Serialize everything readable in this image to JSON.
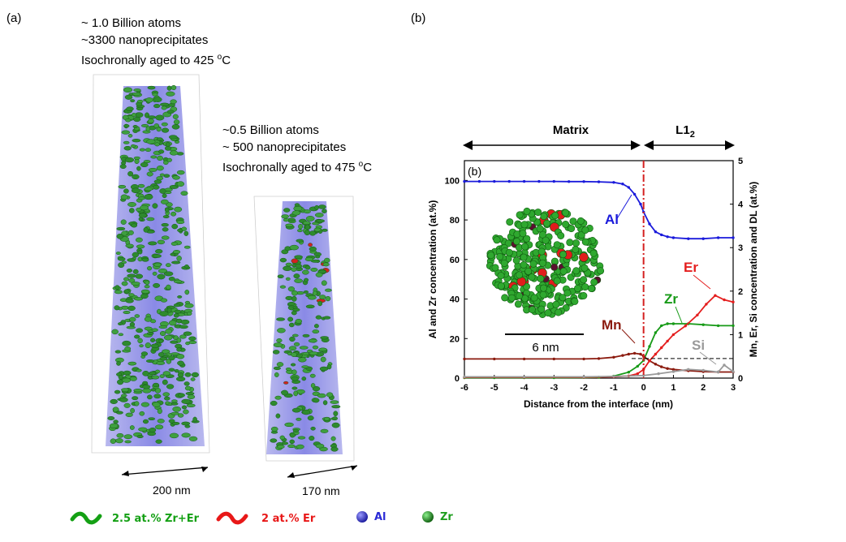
{
  "panel_a": {
    "label": "(a)",
    "tall": {
      "lines": [
        "~ 1.0 Billion atoms",
        "~3300 nanoprecipitates"
      ],
      "aged_prefix": "Isochronally aged to 425 ",
      "aged_sup": "o",
      "aged_suffix": "C",
      "scale": "200 nm"
    },
    "short": {
      "lines": [
        "~0.5 Billion atoms",
        "~ 500 nanoprecipitates"
      ],
      "aged_prefix": "Isochronally aged to 475 ",
      "aged_sup": "o",
      "aged_suffix": "C",
      "scale": "170 nm"
    },
    "legend": [
      {
        "label": "2.5 at.% Zr+Er",
        "kind": "wave",
        "color": "#14a014"
      },
      {
        "label": "2 at.% Er",
        "kind": "wave",
        "color": "#e81818"
      },
      {
        "label": "Al",
        "kind": "sphere",
        "color": "#2a2ad6"
      },
      {
        "label": "Zr",
        "kind": "sphere",
        "color": "#1e9e1e"
      }
    ]
  },
  "panel_b": {
    "label": "(b)",
    "inner_label": "(b)",
    "region_matrix": "Matrix",
    "region_l12": "L1",
    "region_l12_sub": "2",
    "inset_scale": "6 nm"
  },
  "chart_data": {
    "type": "line",
    "xlabel": "Distance from the interface (nm)",
    "ylabel": "Al and Zr concentration (at.%)",
    "y2label": "Mn, Er, Si concentration and DL (at.%)",
    "xlim": [
      -6,
      3
    ],
    "ylim": [
      0,
      110
    ],
    "y2lim": [
      0,
      5
    ],
    "xticks": [
      "-6",
      "-5",
      "-4",
      "-3",
      "-2",
      "-1",
      "0",
      "1",
      "2",
      "3"
    ],
    "yticks": [
      "0",
      "20",
      "40",
      "60",
      "80",
      "100"
    ],
    "y2ticks": [
      "0",
      "1",
      "2",
      "3",
      "4",
      "5"
    ],
    "interface_x": 0,
    "detection_limit": 0.45,
    "series": [
      {
        "name": "Al",
        "axis": "left",
        "color": "#1a1adb",
        "x": [
          -6,
          -5.5,
          -5,
          -4.5,
          -4,
          -3.5,
          -3,
          -2.5,
          -2,
          -1.5,
          -1,
          -0.7,
          -0.5,
          -0.3,
          -0.1,
          0,
          0.2,
          0.4,
          0.6,
          0.8,
          1,
          1.5,
          2,
          2.5,
          3
        ],
        "y": [
          99.5,
          99.5,
          99.5,
          99.5,
          99.5,
          99.5,
          99.5,
          99.4,
          99.4,
          99.3,
          99,
          98.2,
          96.5,
          93,
          88,
          84,
          78,
          74,
          72.5,
          71.5,
          71,
          70.5,
          70.5,
          71,
          71
        ]
      },
      {
        "name": "Zr",
        "axis": "left",
        "color": "#179a17",
        "x": [
          -6,
          -5,
          -4,
          -3,
          -2,
          -1.5,
          -1,
          -0.5,
          -0.2,
          0,
          0.2,
          0.4,
          0.6,
          0.8,
          1,
          1.5,
          2,
          2.5,
          3
        ],
        "y": [
          0.2,
          0.2,
          0.2,
          0.2,
          0.3,
          0.4,
          1,
          3,
          6,
          9,
          16,
          23,
          26.5,
          27.5,
          27.5,
          27.5,
          27,
          26.5,
          26.5
        ]
      },
      {
        "name": "Mn",
        "axis": "right",
        "color": "#8b1a0e",
        "x": [
          -6,
          -5,
          -4,
          -3,
          -2,
          -1.5,
          -1,
          -0.7,
          -0.5,
          -0.3,
          -0.1,
          0,
          0.2,
          0.4,
          0.6,
          0.8,
          1,
          1.5,
          2,
          2.5,
          3
        ],
        "y": [
          0.44,
          0.44,
          0.44,
          0.44,
          0.44,
          0.45,
          0.48,
          0.52,
          0.55,
          0.57,
          0.55,
          0.5,
          0.4,
          0.32,
          0.26,
          0.22,
          0.2,
          0.17,
          0.15,
          0.14,
          0.14
        ]
      },
      {
        "name": "Er",
        "axis": "right",
        "color": "#e41e1e",
        "x": [
          -6,
          -4,
          -2,
          -1,
          -0.5,
          -0.2,
          0,
          0.2,
          0.4,
          0.6,
          0.8,
          1,
          1.4,
          1.8,
          2.1,
          2.4,
          2.7,
          3
        ],
        "y": [
          0.02,
          0.02,
          0.02,
          0.03,
          0.05,
          0.1,
          0.2,
          0.4,
          0.55,
          0.7,
          0.85,
          1.0,
          1.2,
          1.45,
          1.7,
          1.9,
          1.8,
          1.75
        ]
      },
      {
        "name": "Si",
        "axis": "right",
        "color": "#9a9a9a",
        "x": [
          -6,
          -4,
          -2,
          -1,
          0,
          0.5,
          1,
          1.5,
          2,
          2.5,
          2.7,
          3
        ],
        "y": [
          0.03,
          0.03,
          0.03,
          0.04,
          0.06,
          0.1,
          0.15,
          0.2,
          0.18,
          0.14,
          0.3,
          0.15
        ]
      }
    ]
  }
}
